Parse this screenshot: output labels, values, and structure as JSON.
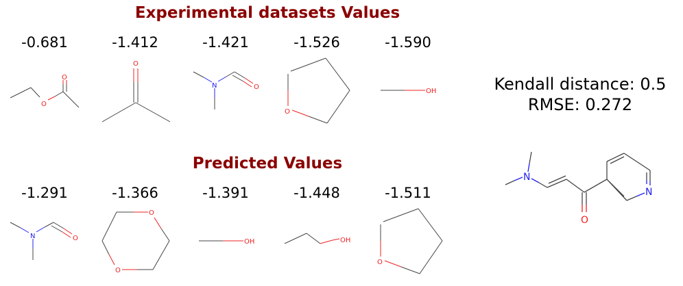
{
  "experimental": {
    "title": "Experimental datasets Values",
    "values": [
      "-0.681",
      "-1.412",
      "-1.421",
      "-1.526",
      "-1.590"
    ]
  },
  "predicted": {
    "title": "Predicted Values",
    "values": [
      "-1.291",
      "-1.366",
      "-1.391",
      "-1.448",
      "-1.511"
    ]
  },
  "metrics": {
    "kendall": "Kendall distance: 0.5",
    "rmse": "RMSE: 0.272"
  },
  "atom_labels": {
    "O": "O",
    "N": "N",
    "OH": "OH"
  },
  "colors": {
    "title": "#8b0000",
    "oxygen": "#ee2020",
    "nitrogen": "#2020ee",
    "bond": "#444444"
  }
}
